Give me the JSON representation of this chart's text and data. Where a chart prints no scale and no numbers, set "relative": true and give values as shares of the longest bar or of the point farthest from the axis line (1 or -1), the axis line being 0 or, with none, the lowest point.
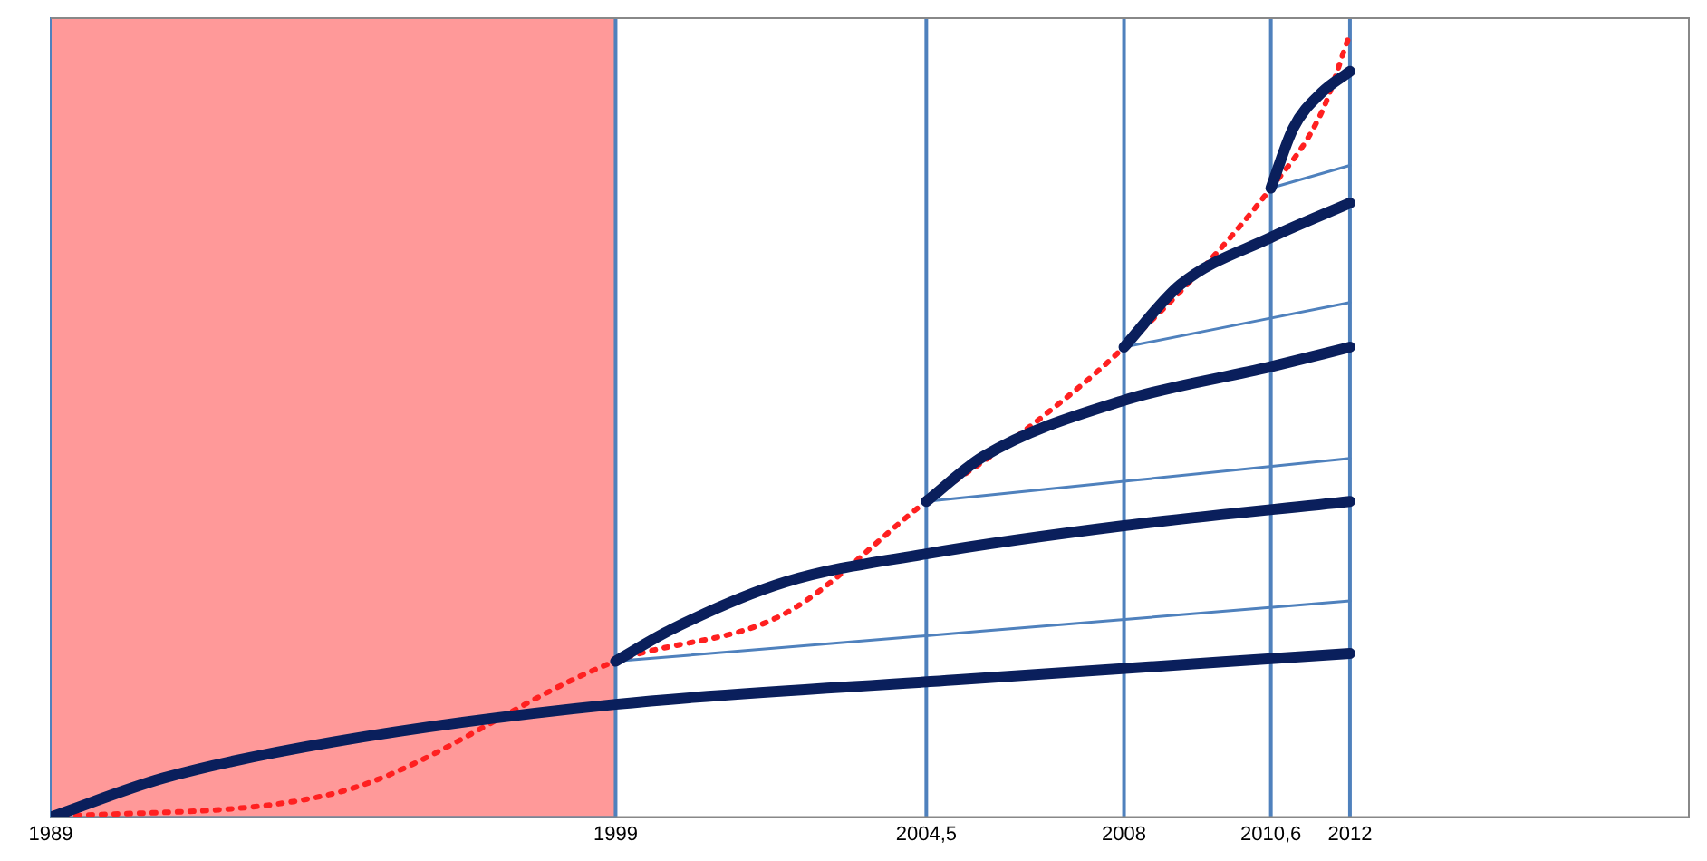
{
  "chart_data": {
    "type": "line",
    "relative": true,
    "legend": false,
    "marker": "none",
    "tick_labels": "x",
    "xlim": [
      1989,
      2018
    ],
    "xticks": [
      1989,
      1999,
      {
        "value": 2004.5,
        "label": "2004,5"
      },
      2008,
      {
        "value": 2010.6,
        "label": "2010,6"
      },
      2012
    ],
    "bands": [
      {
        "axis": "x",
        "from": 1989,
        "to": 1999,
        "color": "#ff9999"
      }
    ],
    "ref_lines": [
      {
        "axis": "x",
        "value": 1999,
        "color": "#4f81bd"
      },
      {
        "axis": "x",
        "value": 2004.5,
        "color": "#4f81bd"
      },
      {
        "axis": "x",
        "value": 2008,
        "color": "#4f81bd"
      },
      {
        "axis": "x",
        "value": 2010.6,
        "color": "#4f81bd"
      },
      {
        "axis": "x",
        "value": 2012,
        "color": "#4f81bd"
      }
    ],
    "series": [
      {
        "color": "#0a1f5c",
        "line_style": "solid",
        "x": [
          1989,
          1991,
          1994,
          1999,
          2005,
          2012
        ],
        "values": [
          0,
          0.05,
          0.096,
          0.144,
          0.175,
          0.209
        ]
      },
      {
        "color": "#0a1f5c",
        "line_style": "solid",
        "x": [
          1999,
          2000,
          2002,
          2004.5,
          2008,
          2012
        ],
        "values": [
          0.199,
          0.24,
          0.3,
          0.336,
          0.372,
          0.403
        ]
      },
      {
        "color": "#0a1f5c",
        "line_style": "solid",
        "x": [
          2004.5,
          2005.5,
          2008,
          2010.6,
          2012
        ],
        "values": [
          0.403,
          0.46,
          0.532,
          0.575,
          0.6
        ]
      },
      {
        "color": "#0a1f5c",
        "line_style": "solid",
        "x": [
          2008,
          2009,
          2010.6,
          2012
        ],
        "values": [
          0.6,
          0.68,
          0.74,
          0.784
        ]
      },
      {
        "color": "#0a1f5c",
        "line_style": "solid",
        "x": [
          2010.6,
          2011,
          2011.5,
          2012
        ],
        "values": [
          0.803,
          0.88,
          0.925,
          0.952
        ]
      },
      {
        "color": "#4f81bd",
        "line_style": "solid",
        "x": [
          1999,
          2012
        ],
        "values": [
          0.199,
          0.276
        ]
      },
      {
        "color": "#4f81bd",
        "line_style": "solid",
        "x": [
          2004.5,
          2012
        ],
        "values": [
          0.403,
          0.458
        ]
      },
      {
        "color": "#4f81bd",
        "line_style": "solid",
        "x": [
          2008,
          2012
        ],
        "values": [
          0.6,
          0.657
        ]
      },
      {
        "color": "#4f81bd",
        "line_style": "solid",
        "x": [
          2010.6,
          2012
        ],
        "values": [
          0.803,
          0.832
        ]
      },
      {
        "color": "#ff2020",
        "line_style": "dotted",
        "x": [
          1989,
          1994,
          1999,
          2002,
          2004.5,
          2006,
          2008,
          2010.6,
          2011.5,
          2012
        ],
        "values": [
          0,
          0.03,
          0.199,
          0.26,
          0.403,
          0.48,
          0.6,
          0.803,
          0.9,
          1
        ]
      }
    ]
  }
}
